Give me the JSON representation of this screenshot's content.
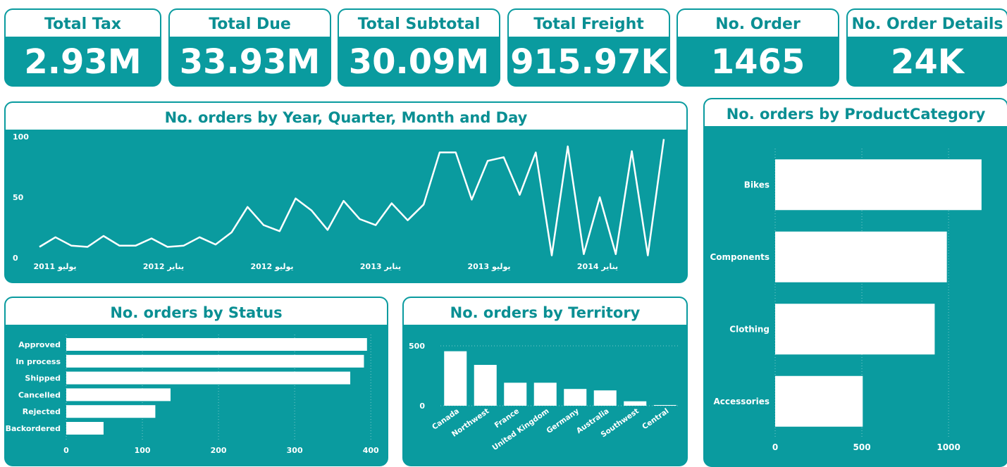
{
  "kpis": [
    {
      "label": "Total Tax",
      "value": "2.93M"
    },
    {
      "label": "Total Due",
      "value": "33.93M"
    },
    {
      "label": "Total Subtotal",
      "value": "30.09M"
    },
    {
      "label": "Total Freight",
      "value": "915.97K"
    },
    {
      "label": "No. Order",
      "value": "1465"
    },
    {
      "label": "No. Order Details",
      "value": "24K"
    }
  ],
  "colors": {
    "teal": "#0a9b9f",
    "title": "#0a8f93",
    "mark": "#ffffff"
  },
  "chart_data": [
    {
      "type": "line",
      "title": "No. orders by Year, Quarter, Month and Day",
      "ylim": [
        0,
        100
      ],
      "yticks": [
        0,
        50,
        100
      ],
      "xtick_labels": [
        "يوليو 2011",
        "يناير 2012",
        "يوليو 2012",
        "يناير 2013",
        "يوليو 2013",
        "يناير 2014"
      ],
      "grid": false,
      "values": [
        9,
        17,
        10,
        9,
        18,
        10,
        10,
        16,
        9,
        10,
        17,
        11,
        21,
        42,
        27,
        22,
        49,
        39,
        23,
        47,
        32,
        27,
        45,
        31,
        44,
        87,
        87,
        48,
        80,
        83,
        52,
        87,
        2,
        92,
        3,
        50,
        3,
        88,
        2,
        98
      ]
    },
    {
      "type": "bar",
      "orientation": "horizontal",
      "title": "No. orders by ProductCategory",
      "categories": [
        "Bikes",
        "Components",
        "Clothing",
        "Accessories"
      ],
      "values": [
        1190,
        990,
        920,
        505
      ],
      "xlim": [
        0,
        1280
      ],
      "xticks": [
        0,
        500,
        1000
      ],
      "grid": true
    },
    {
      "type": "bar",
      "orientation": "horizontal",
      "title": "No. orders by Status",
      "categories": [
        "Approved",
        "In process",
        "Shipped",
        "Cancelled",
        "Rejected",
        "Backordered"
      ],
      "values": [
        395,
        391,
        373,
        137,
        117,
        49
      ],
      "xlim": [
        0,
        410
      ],
      "xticks": [
        0,
        100,
        200,
        300,
        400
      ],
      "grid": true
    },
    {
      "type": "bar",
      "title": "No. orders by Territory",
      "categories": [
        "Canada",
        "Northwest",
        "France",
        "United Kingdom",
        "Germany",
        "Australia",
        "Southwest",
        "Central"
      ],
      "values": [
        455,
        341,
        192,
        192,
        140,
        128,
        37,
        6
      ],
      "ylim": [
        0,
        500
      ],
      "yticks": [
        0,
        500
      ],
      "grid": true
    }
  ]
}
